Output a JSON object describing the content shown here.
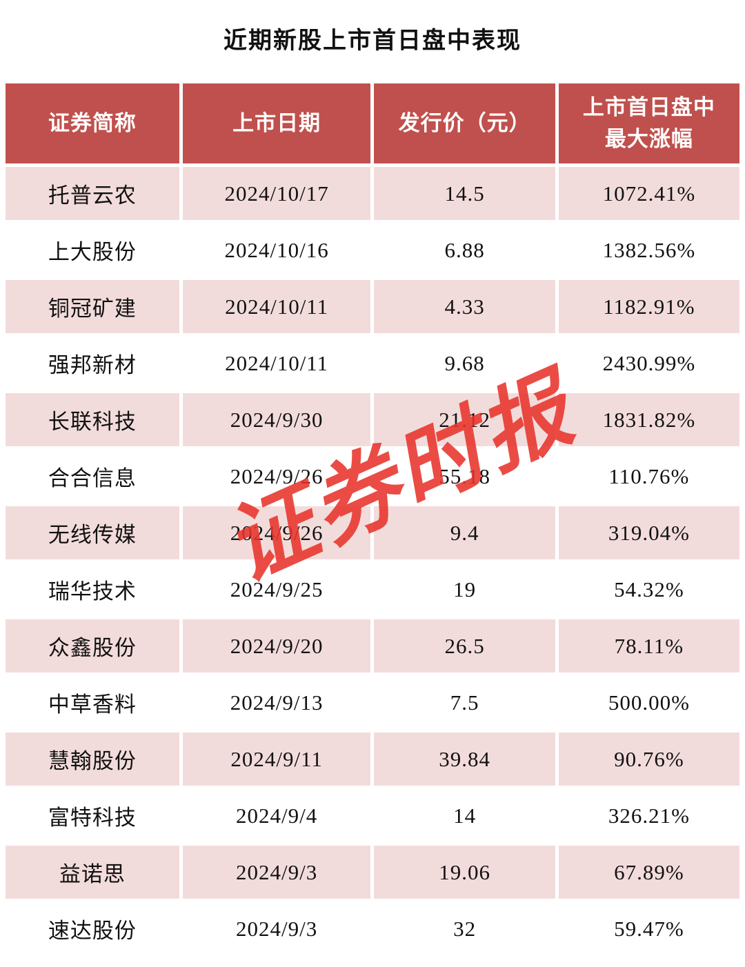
{
  "page": {
    "title": "近期新股上市首日盘中表现",
    "watermark": "证券时报"
  },
  "chart_data": {
    "type": "table",
    "title": "近期新股上市首日盘中表现",
    "columns": [
      "证券简称",
      "上市日期",
      "发行价（元）",
      "上市首日盘中最大涨幅"
    ],
    "rows": [
      [
        "托普云农",
        "2024/10/17",
        "14.5",
        "1072.41%"
      ],
      [
        "上大股份",
        "2024/10/16",
        "6.88",
        "1382.56%"
      ],
      [
        "铜冠矿建",
        "2024/10/11",
        "4.33",
        "1182.91%"
      ],
      [
        "强邦新材",
        "2024/10/11",
        "9.68",
        "2430.99%"
      ],
      [
        "长联科技",
        "2024/9/30",
        "21.12",
        "1831.82%"
      ],
      [
        "合合信息",
        "2024/9/26",
        "55.18",
        "110.76%"
      ],
      [
        "无线传媒",
        "2024/9/26",
        "9.4",
        "319.04%"
      ],
      [
        "瑞华技术",
        "2024/9/25",
        "19",
        "54.32%"
      ],
      [
        "众鑫股份",
        "2024/9/20",
        "26.5",
        "78.11%"
      ],
      [
        "中草香料",
        "2024/9/13",
        "7.5",
        "500.00%"
      ],
      [
        "慧翰股份",
        "2024/9/11",
        "39.84",
        "90.76%"
      ],
      [
        "富特科技",
        "2024/9/4",
        "14",
        "326.21%"
      ],
      [
        "益诺思",
        "2024/9/3",
        "19.06",
        "67.89%"
      ],
      [
        "速达股份",
        "2024/9/3",
        "32",
        "59.47%"
      ]
    ],
    "colors": {
      "header_bg": "#c0504d",
      "header_text": "#ffffff",
      "row_alt_bg": "#f2dcdb",
      "row_bg": "#ffffff",
      "watermark": "#e8342c"
    }
  }
}
